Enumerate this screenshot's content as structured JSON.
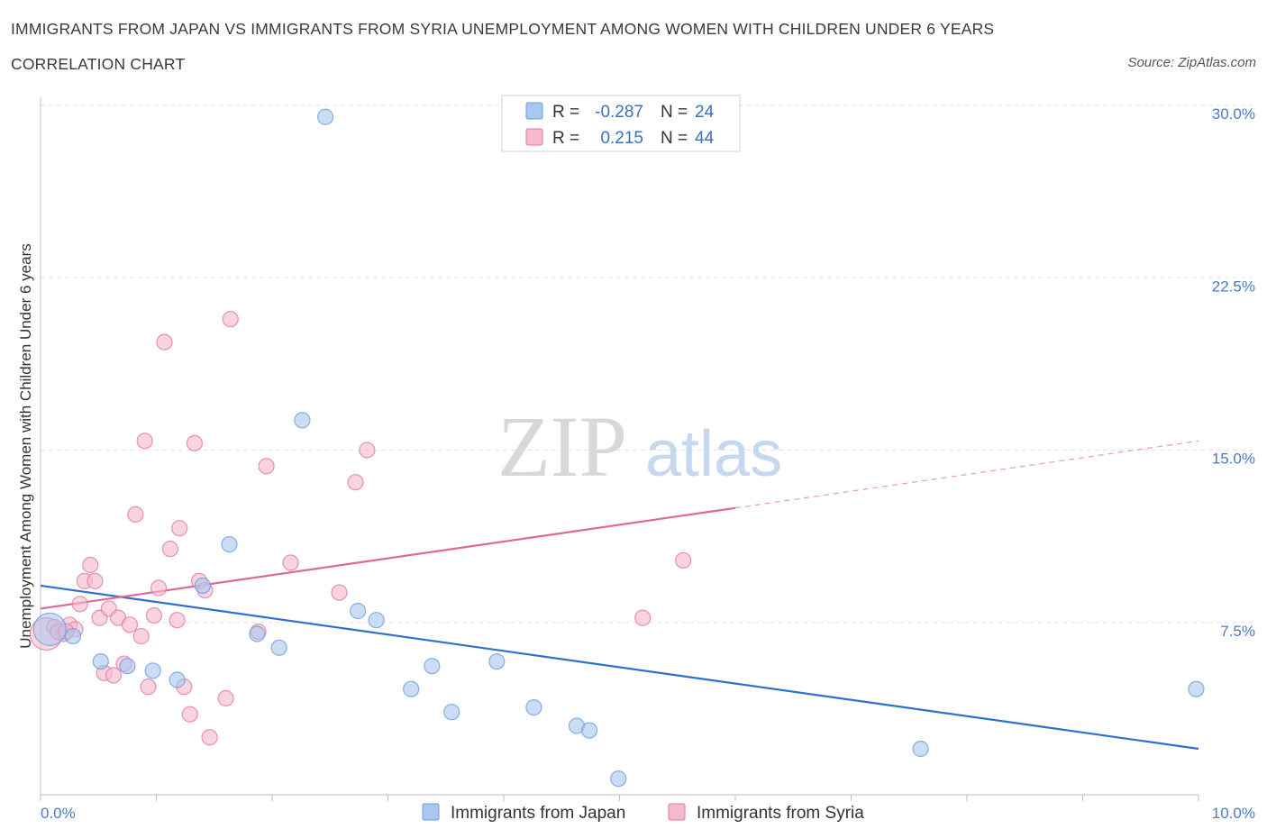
{
  "header": {
    "title": "IMMIGRANTS FROM JAPAN VS IMMIGRANTS FROM SYRIA UNEMPLOYMENT AMONG WOMEN WITH CHILDREN UNDER 6 YEARS",
    "subtitle": "CORRELATION CHART",
    "source": "Source: ZipAtlas.com"
  },
  "watermark": {
    "zip": "ZIP",
    "atlas": "atlas"
  },
  "legend": {
    "rows": [
      {
        "r_label": "R =",
        "r_value": "-0.287",
        "n_label": "N =",
        "n_value": "24",
        "color": "#a9c7ef"
      },
      {
        "r_label": "R =",
        "r_value": "0.215",
        "n_label": "N =",
        "n_value": "44",
        "color": "#f5b8cc"
      }
    ]
  },
  "bottom_legend": [
    {
      "label": "Immigrants from Japan",
      "color": "#a9c7ef"
    },
    {
      "label": "Immigrants from Syria",
      "color": "#f5b8cc"
    }
  ],
  "chart_data": {
    "type": "scatter",
    "xlabel": "",
    "ylabel": "Unemployment Among Women with Children Under 6 years",
    "xlim": [
      0,
      10
    ],
    "ylim": [
      0,
      30
    ],
    "x_tick_labels": [
      {
        "value": 0,
        "label": "0.0%"
      },
      {
        "value": 10,
        "label": "10.0%"
      }
    ],
    "y_tick_labels": [
      {
        "value": 7.5,
        "label": "7.5%"
      },
      {
        "value": 15,
        "label": "15.0%"
      },
      {
        "value": 22.5,
        "label": "22.5%"
      },
      {
        "value": 30,
        "label": "30.0%"
      }
    ],
    "grid": true,
    "legend_position": "top-center",
    "series": [
      {
        "name": "Immigrants from Japan",
        "color": "#6a9ee0",
        "fill": "#a9c7ef",
        "trend": {
          "x": [
            0,
            10
          ],
          "y": [
            9.1,
            2.0
          ],
          "solid_to": 10
        },
        "points": [
          {
            "x": 0.08,
            "y": 7.2,
            "big": true
          },
          {
            "x": 0.28,
            "y": 6.9
          },
          {
            "x": 0.52,
            "y": 5.8
          },
          {
            "x": 0.75,
            "y": 5.6
          },
          {
            "x": 0.97,
            "y": 5.4
          },
          {
            "x": 1.18,
            "y": 5.0
          },
          {
            "x": 1.4,
            "y": 9.1
          },
          {
            "x": 1.63,
            "y": 10.9
          },
          {
            "x": 1.87,
            "y": 7.0
          },
          {
            "x": 2.06,
            "y": 6.4
          },
          {
            "x": 2.26,
            "y": 16.3
          },
          {
            "x": 2.46,
            "y": 29.5
          },
          {
            "x": 2.74,
            "y": 8.0
          },
          {
            "x": 2.9,
            "y": 7.6
          },
          {
            "x": 3.2,
            "y": 4.6
          },
          {
            "x": 3.38,
            "y": 5.6
          },
          {
            "x": 3.55,
            "y": 3.6
          },
          {
            "x": 3.94,
            "y": 5.8
          },
          {
            "x": 4.26,
            "y": 3.8
          },
          {
            "x": 4.63,
            "y": 3.0
          },
          {
            "x": 4.74,
            "y": 2.8
          },
          {
            "x": 4.99,
            "y": 0.7
          },
          {
            "x": 7.6,
            "y": 2.0
          },
          {
            "x": 9.98,
            "y": 4.6
          }
        ]
      },
      {
        "name": "Immigrants from Syria",
        "color": "#e07aa0",
        "fill": "#f5b8cc",
        "trend": {
          "x": [
            0,
            10
          ],
          "y": [
            8.1,
            15.4
          ],
          "solid_to": 6.0
        },
        "points": [
          {
            "x": 0.05,
            "y": 7.0,
            "big": true
          },
          {
            "x": 0.12,
            "y": 7.3
          },
          {
            "x": 0.2,
            "y": 7.0
          },
          {
            "x": 0.25,
            "y": 7.4
          },
          {
            "x": 0.3,
            "y": 7.2
          },
          {
            "x": 0.34,
            "y": 8.3
          },
          {
            "x": 0.38,
            "y": 9.3
          },
          {
            "x": 0.43,
            "y": 10.0
          },
          {
            "x": 0.47,
            "y": 9.3
          },
          {
            "x": 0.51,
            "y": 7.7
          },
          {
            "x": 0.55,
            "y": 5.3
          },
          {
            "x": 0.59,
            "y": 8.1
          },
          {
            "x": 0.63,
            "y": 5.2
          },
          {
            "x": 0.67,
            "y": 7.7
          },
          {
            "x": 0.72,
            "y": 5.7
          },
          {
            "x": 0.77,
            "y": 7.4
          },
          {
            "x": 0.82,
            "y": 12.2
          },
          {
            "x": 0.87,
            "y": 6.9
          },
          {
            "x": 0.9,
            "y": 15.4
          },
          {
            "x": 0.93,
            "y": 4.7
          },
          {
            "x": 0.98,
            "y": 7.8
          },
          {
            "x": 1.02,
            "y": 9.0
          },
          {
            "x": 1.07,
            "y": 19.7
          },
          {
            "x": 1.12,
            "y": 10.7
          },
          {
            "x": 1.18,
            "y": 7.6
          },
          {
            "x": 1.2,
            "y": 11.6
          },
          {
            "x": 1.24,
            "y": 4.7
          },
          {
            "x": 1.29,
            "y": 3.5
          },
          {
            "x": 1.33,
            "y": 15.3
          },
          {
            "x": 1.37,
            "y": 9.3
          },
          {
            "x": 1.42,
            "y": 8.9
          },
          {
            "x": 1.46,
            "y": 2.5
          },
          {
            "x": 1.6,
            "y": 4.2
          },
          {
            "x": 1.64,
            "y": 20.7
          },
          {
            "x": 1.88,
            "y": 7.1
          },
          {
            "x": 1.95,
            "y": 14.3
          },
          {
            "x": 2.16,
            "y": 10.1
          },
          {
            "x": 2.58,
            "y": 8.8
          },
          {
            "x": 2.72,
            "y": 13.6
          },
          {
            "x": 2.82,
            "y": 15.0
          },
          {
            "x": 5.2,
            "y": 7.7
          },
          {
            "x": 5.55,
            "y": 10.2
          },
          {
            "x": 0.15,
            "y": 7.1
          },
          {
            "x": 0.22,
            "y": 7.1
          }
        ]
      }
    ]
  }
}
